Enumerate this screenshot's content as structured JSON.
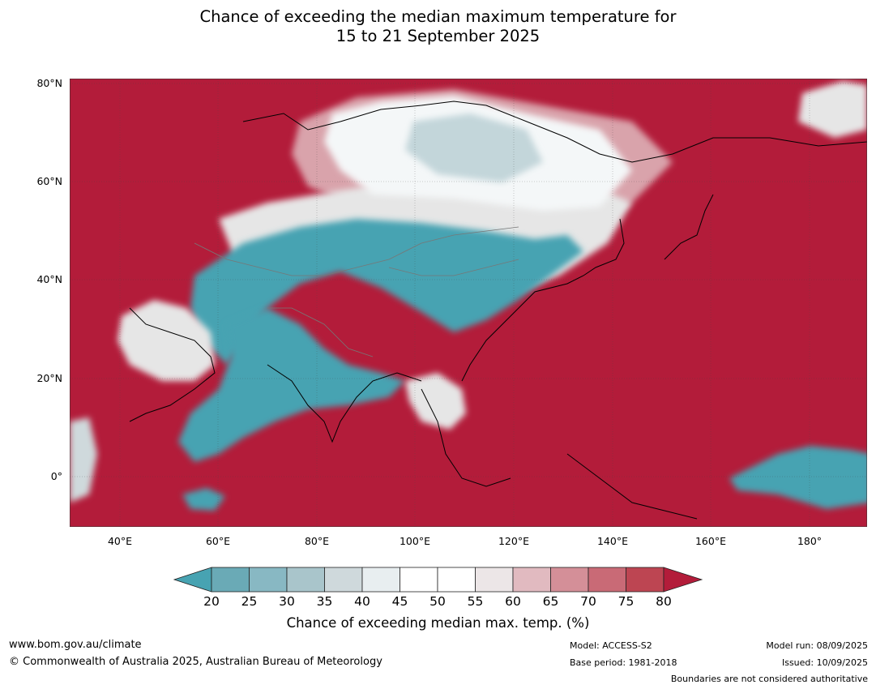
{
  "title": {
    "line1": "Chance of exceeding the median maximum temperature for",
    "line2": "15 to 21 September 2025"
  },
  "map": {
    "lat_labels": [
      "80°N",
      "60°N",
      "40°N",
      "20°N",
      "0°"
    ],
    "lon_labels": [
      "40°E",
      "60°E",
      "80°E",
      "100°E",
      "120°E",
      "140°E",
      "160°E",
      "180°"
    ],
    "colors": {
      "warm": "#b31c3a",
      "cool": "#47a3b2",
      "neutral_white": "#ffffff",
      "coast": "#000000",
      "border": "#777777"
    }
  },
  "colorbar": {
    "tick_labels": [
      "20",
      "25",
      "30",
      "35",
      "40",
      "45",
      "50",
      "55",
      "60",
      "65",
      "70",
      "75",
      "80"
    ],
    "colors": [
      "#47a3b2",
      "#6aaab6",
      "#88b8c3",
      "#a9c5cb",
      "#cfd9dc",
      "#e8eef0",
      "#ffffff",
      "#ffffff",
      "#ece6e7",
      "#e1bac0",
      "#d48f98",
      "#c96a76",
      "#bd4552",
      "#b31c3a"
    ],
    "label": "Chance of exceeding median max. temp. (%)"
  },
  "footer": {
    "website": "www.bom.gov.au/climate",
    "copyright": "© Commonwealth of Australia 2025, Australian Bureau of Meteorology",
    "model": "Model: ACCESS-S2",
    "base_period": "Base period: 1981-2018",
    "model_run": "Model run: 08/09/2025",
    "issued": "Issued: 10/09/2025",
    "disclaimer": "Boundaries are not considered authoritative"
  }
}
